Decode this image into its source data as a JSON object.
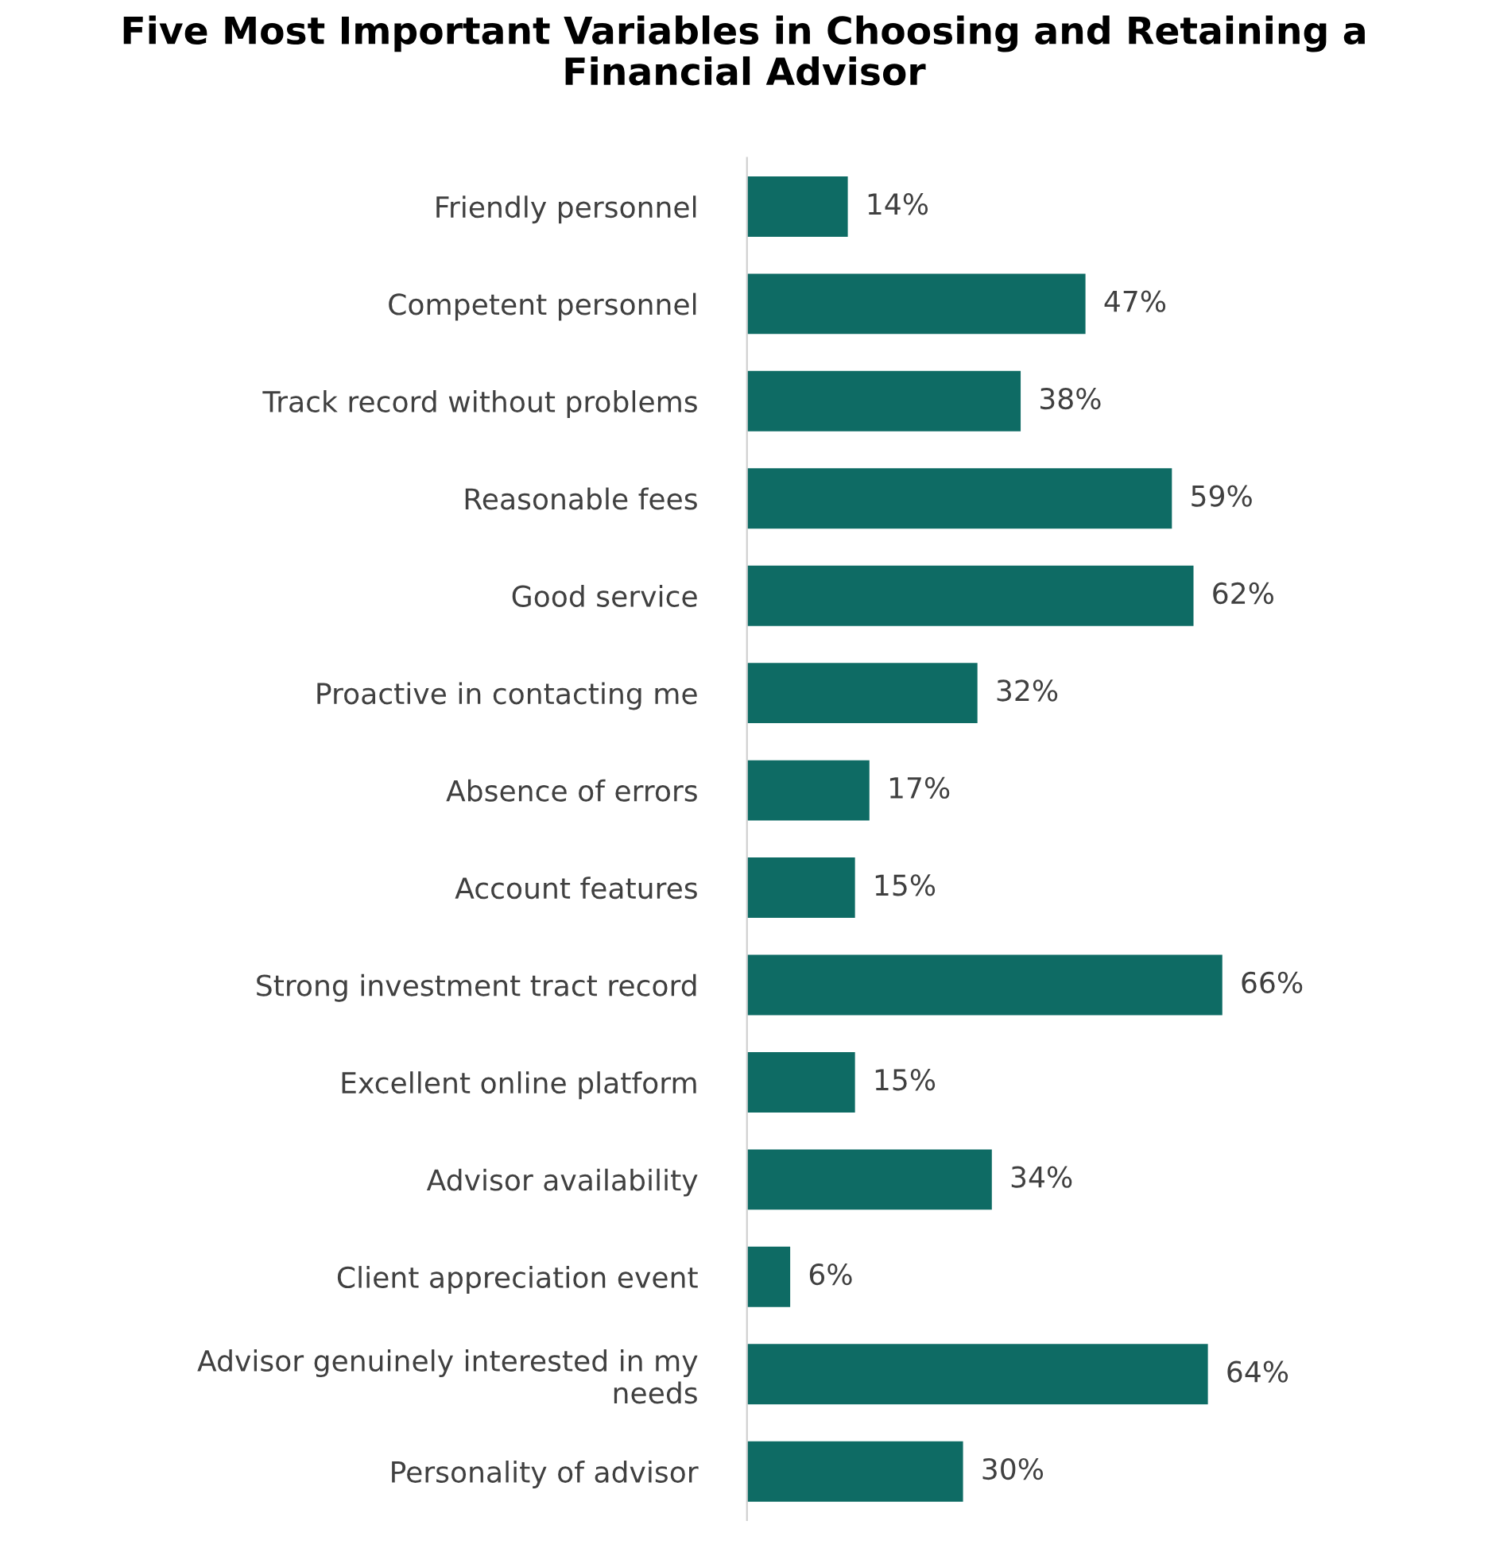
{
  "chart_data": {
    "type": "bar",
    "orientation": "horizontal",
    "title": "Five Most Important Variables in Choosing and Retaining a Financial Advisor",
    "categories": [
      "Friendly personnel",
      "Competent personnel",
      "Track record without problems",
      "Reasonable fees",
      "Good service",
      "Proactive in contacting me",
      "Absence of errors",
      "Account features",
      "Strong investment tract record",
      "Excellent online platform",
      "Advisor availability",
      "Client appreciation event",
      "Advisor genuinely interested in my needs",
      "Personality of advisor"
    ],
    "values": [
      14,
      47,
      38,
      59,
      62,
      32,
      17,
      15,
      66,
      15,
      34,
      6,
      64,
      30
    ],
    "value_labels": [
      "14%",
      "47%",
      "38%",
      "59%",
      "62%",
      "32%",
      "17%",
      "15%",
      "66%",
      "15%",
      "34%",
      "6%",
      "64%",
      "30%"
    ],
    "color": "#0e6b64",
    "grid": false,
    "legend": false
  }
}
